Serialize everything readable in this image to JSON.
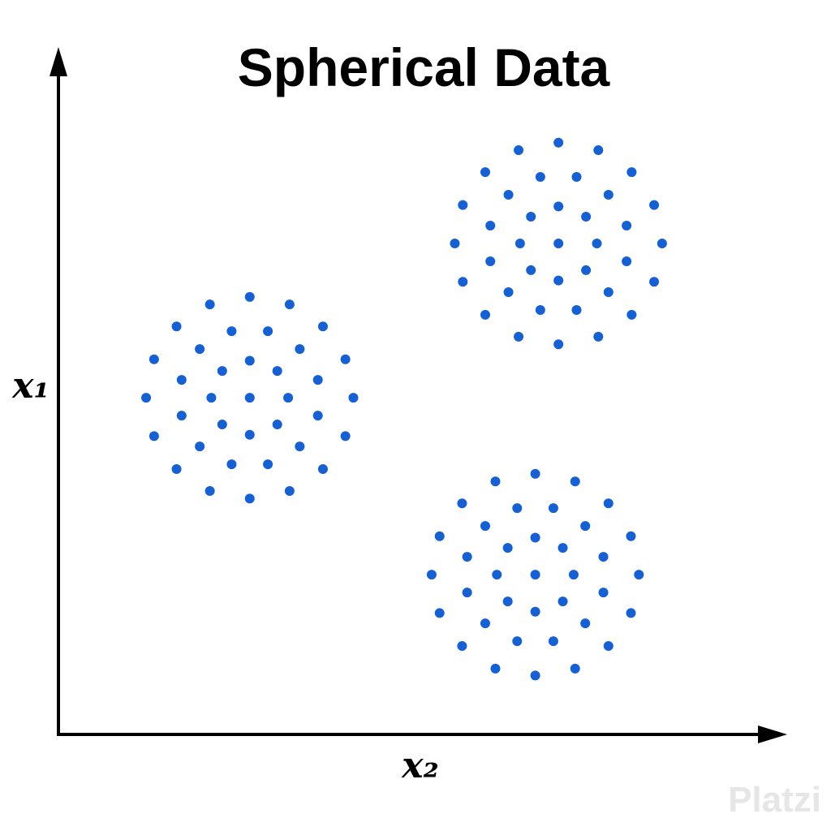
{
  "chart_data": {
    "type": "scatter",
    "title": "Spherical Data",
    "x_label": "x₂",
    "y_label": "x₁",
    "watermark": "Platzi",
    "color": "#1560d4",
    "xlim": [
      0,
      100
    ],
    "ylim": [
      0,
      100
    ],
    "x": [
      26.4,
      31.7,
      30.2,
      26.4,
      22.6,
      21.1,
      22.6,
      26.4,
      30.2,
      35.8,
      33.3,
      28.9,
      23.9,
      19.5,
      17.0,
      17.0,
      19.5,
      23.9,
      28.9,
      33.3,
      35.8,
      40.7,
      39.6,
      36.5,
      31.9,
      26.4,
      20.9,
      16.3,
      13.2,
      12.1,
      13.2,
      16.3,
      20.9,
      26.4,
      31.9,
      36.5,
      39.6,
      69.0,
      74.3,
      72.8,
      69.0,
      65.2,
      63.7,
      65.2,
      69.0,
      72.8,
      78.4,
      75.9,
      71.5,
      66.5,
      62.1,
      59.6,
      59.6,
      62.1,
      66.5,
      71.5,
      75.9,
      78.4,
      83.3,
      82.2,
      79.1,
      74.5,
      69.0,
      63.5,
      58.9,
      55.8,
      54.7,
      55.8,
      58.9,
      63.5,
      69.0,
      74.5,
      79.1,
      82.2,
      65.8,
      71.1,
      69.6,
      65.8,
      62.0,
      60.5,
      62.0,
      65.8,
      69.6,
      75.2,
      72.7,
      68.3,
      63.3,
      58.9,
      56.4,
      56.4,
      58.9,
      63.3,
      68.3,
      72.7,
      75.2,
      80.1,
      79.0,
      75.9,
      71.3,
      65.8,
      60.3,
      55.7,
      52.6,
      51.5,
      52.6,
      55.7,
      60.3,
      65.8,
      71.3,
      75.9,
      79.0
    ],
    "y": [
      49.1,
      49.1,
      53.0,
      54.5,
      53.0,
      49.1,
      45.2,
      43.7,
      45.2,
      51.7,
      56.2,
      58.8,
      58.8,
      56.2,
      51.7,
      46.5,
      42.0,
      39.4,
      39.4,
      42.0,
      46.5,
      49.1,
      54.7,
      59.5,
      62.7,
      63.8,
      62.7,
      59.5,
      54.7,
      49.1,
      43.5,
      38.7,
      35.5,
      34.4,
      35.5,
      38.7,
      43.5,
      71.6,
      71.6,
      75.5,
      77.0,
      75.5,
      71.6,
      67.7,
      66.2,
      67.7,
      74.2,
      78.7,
      81.3,
      81.3,
      78.7,
      74.2,
      69.0,
      64.5,
      61.9,
      61.9,
      64.5,
      69.0,
      71.6,
      77.2,
      82.0,
      85.2,
      86.3,
      85.2,
      82.0,
      77.2,
      71.6,
      66.0,
      61.2,
      58.0,
      56.9,
      58.0,
      61.2,
      66.0,
      23.3,
      23.3,
      27.2,
      28.7,
      27.2,
      23.3,
      19.4,
      17.9,
      19.4,
      25.9,
      30.4,
      33.0,
      33.0,
      30.4,
      25.9,
      20.7,
      16.2,
      13.6,
      13.6,
      16.2,
      20.7,
      23.3,
      28.9,
      33.7,
      36.9,
      38.0,
      36.9,
      33.7,
      28.9,
      23.3,
      17.7,
      12.9,
      9.6,
      8.6,
      9.6,
      12.9,
      17.7
    ]
  }
}
